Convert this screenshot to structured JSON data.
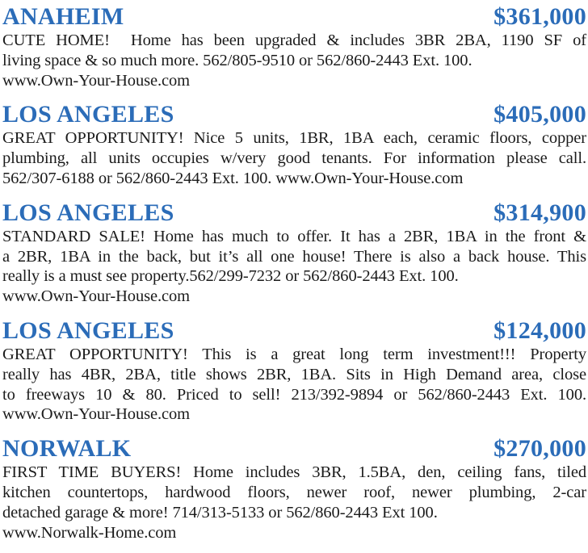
{
  "page": {
    "accent_blue": "#2b6cb8",
    "text_color": "#1b1b1b",
    "background": "#ffffff"
  },
  "listings": [
    {
      "city": "ANAHEIM",
      "price": "$361,000",
      "lines": [
        {
          "text": "CUTE HOME!  Home has been upgraded & includes 3BR 2BA, 1190 SF of",
          "justify": true
        },
        {
          "text": "living space & so much more. 562/805-9510 or 562/860-2443 Ext. 100.",
          "justify": false
        },
        {
          "text": "www.Own-Your-House.com",
          "justify": false
        }
      ]
    },
    {
      "city": "LOS ANGELES",
      "price": "$405,000",
      "lines": [
        {
          "text": "GREAT OPPORTUNITY! Nice 5 units, 1BR, 1BA each, ceramic floors, copper",
          "justify": true
        },
        {
          "text": "plumbing, all units occupies w/very good tenants. For information please call.",
          "justify": true
        },
        {
          "text": "562/307-6188 or 562/860-2443 Ext. 100. www.Own-Your-House.com",
          "justify": false
        }
      ]
    },
    {
      "city": "LOS ANGELES",
      "price": "$314,900",
      "lines": [
        {
          "text": "STANDARD SALE! Home has much to offer. It has a 2BR, 1BA in the front &",
          "justify": true
        },
        {
          "text": "a 2BR, 1BA in the back, but it’s all one house! There is also a back house. This",
          "justify": true
        },
        {
          "text": "really is a must see property.562/299-7232 or 562/860-2443 Ext. 100.",
          "justify": false
        },
        {
          "text": "www.Own-Your-House.com",
          "justify": false
        }
      ]
    },
    {
      "city": "LOS ANGELES",
      "price": "$124,000",
      "lines": [
        {
          "text": "GREAT OPPORTUNITY! This is a great long term investment!!! Property",
          "justify": true
        },
        {
          "text": "really has 4BR, 2BA, title shows 2BR, 1BA. Sits in High Demand area, close",
          "justify": true
        },
        {
          "text": "to freeways 10 & 80. Priced to sell! 213/392-9894 or 562/860-2443 Ext. 100.",
          "justify": true
        },
        {
          "text": "www.Own-Your-House.com",
          "justify": false
        }
      ]
    },
    {
      "city": "NORWALK",
      "price": "$270,000",
      "lines": [
        {
          "text": "FIRST TIME BUYERS! Home includes 3BR, 1.5BA, den, ceiling fans, tiled",
          "justify": true
        },
        {
          "text": "kitchen countertops, hardwood floors, newer roof, newer plumbing, 2-car",
          "justify": true
        },
        {
          "text": "detached garage & more! 714/313-5133 or 562/860-2443 Ext 100.",
          "justify": false
        },
        {
          "text": "www.Norwalk-Home.com",
          "justify": false
        }
      ]
    }
  ]
}
